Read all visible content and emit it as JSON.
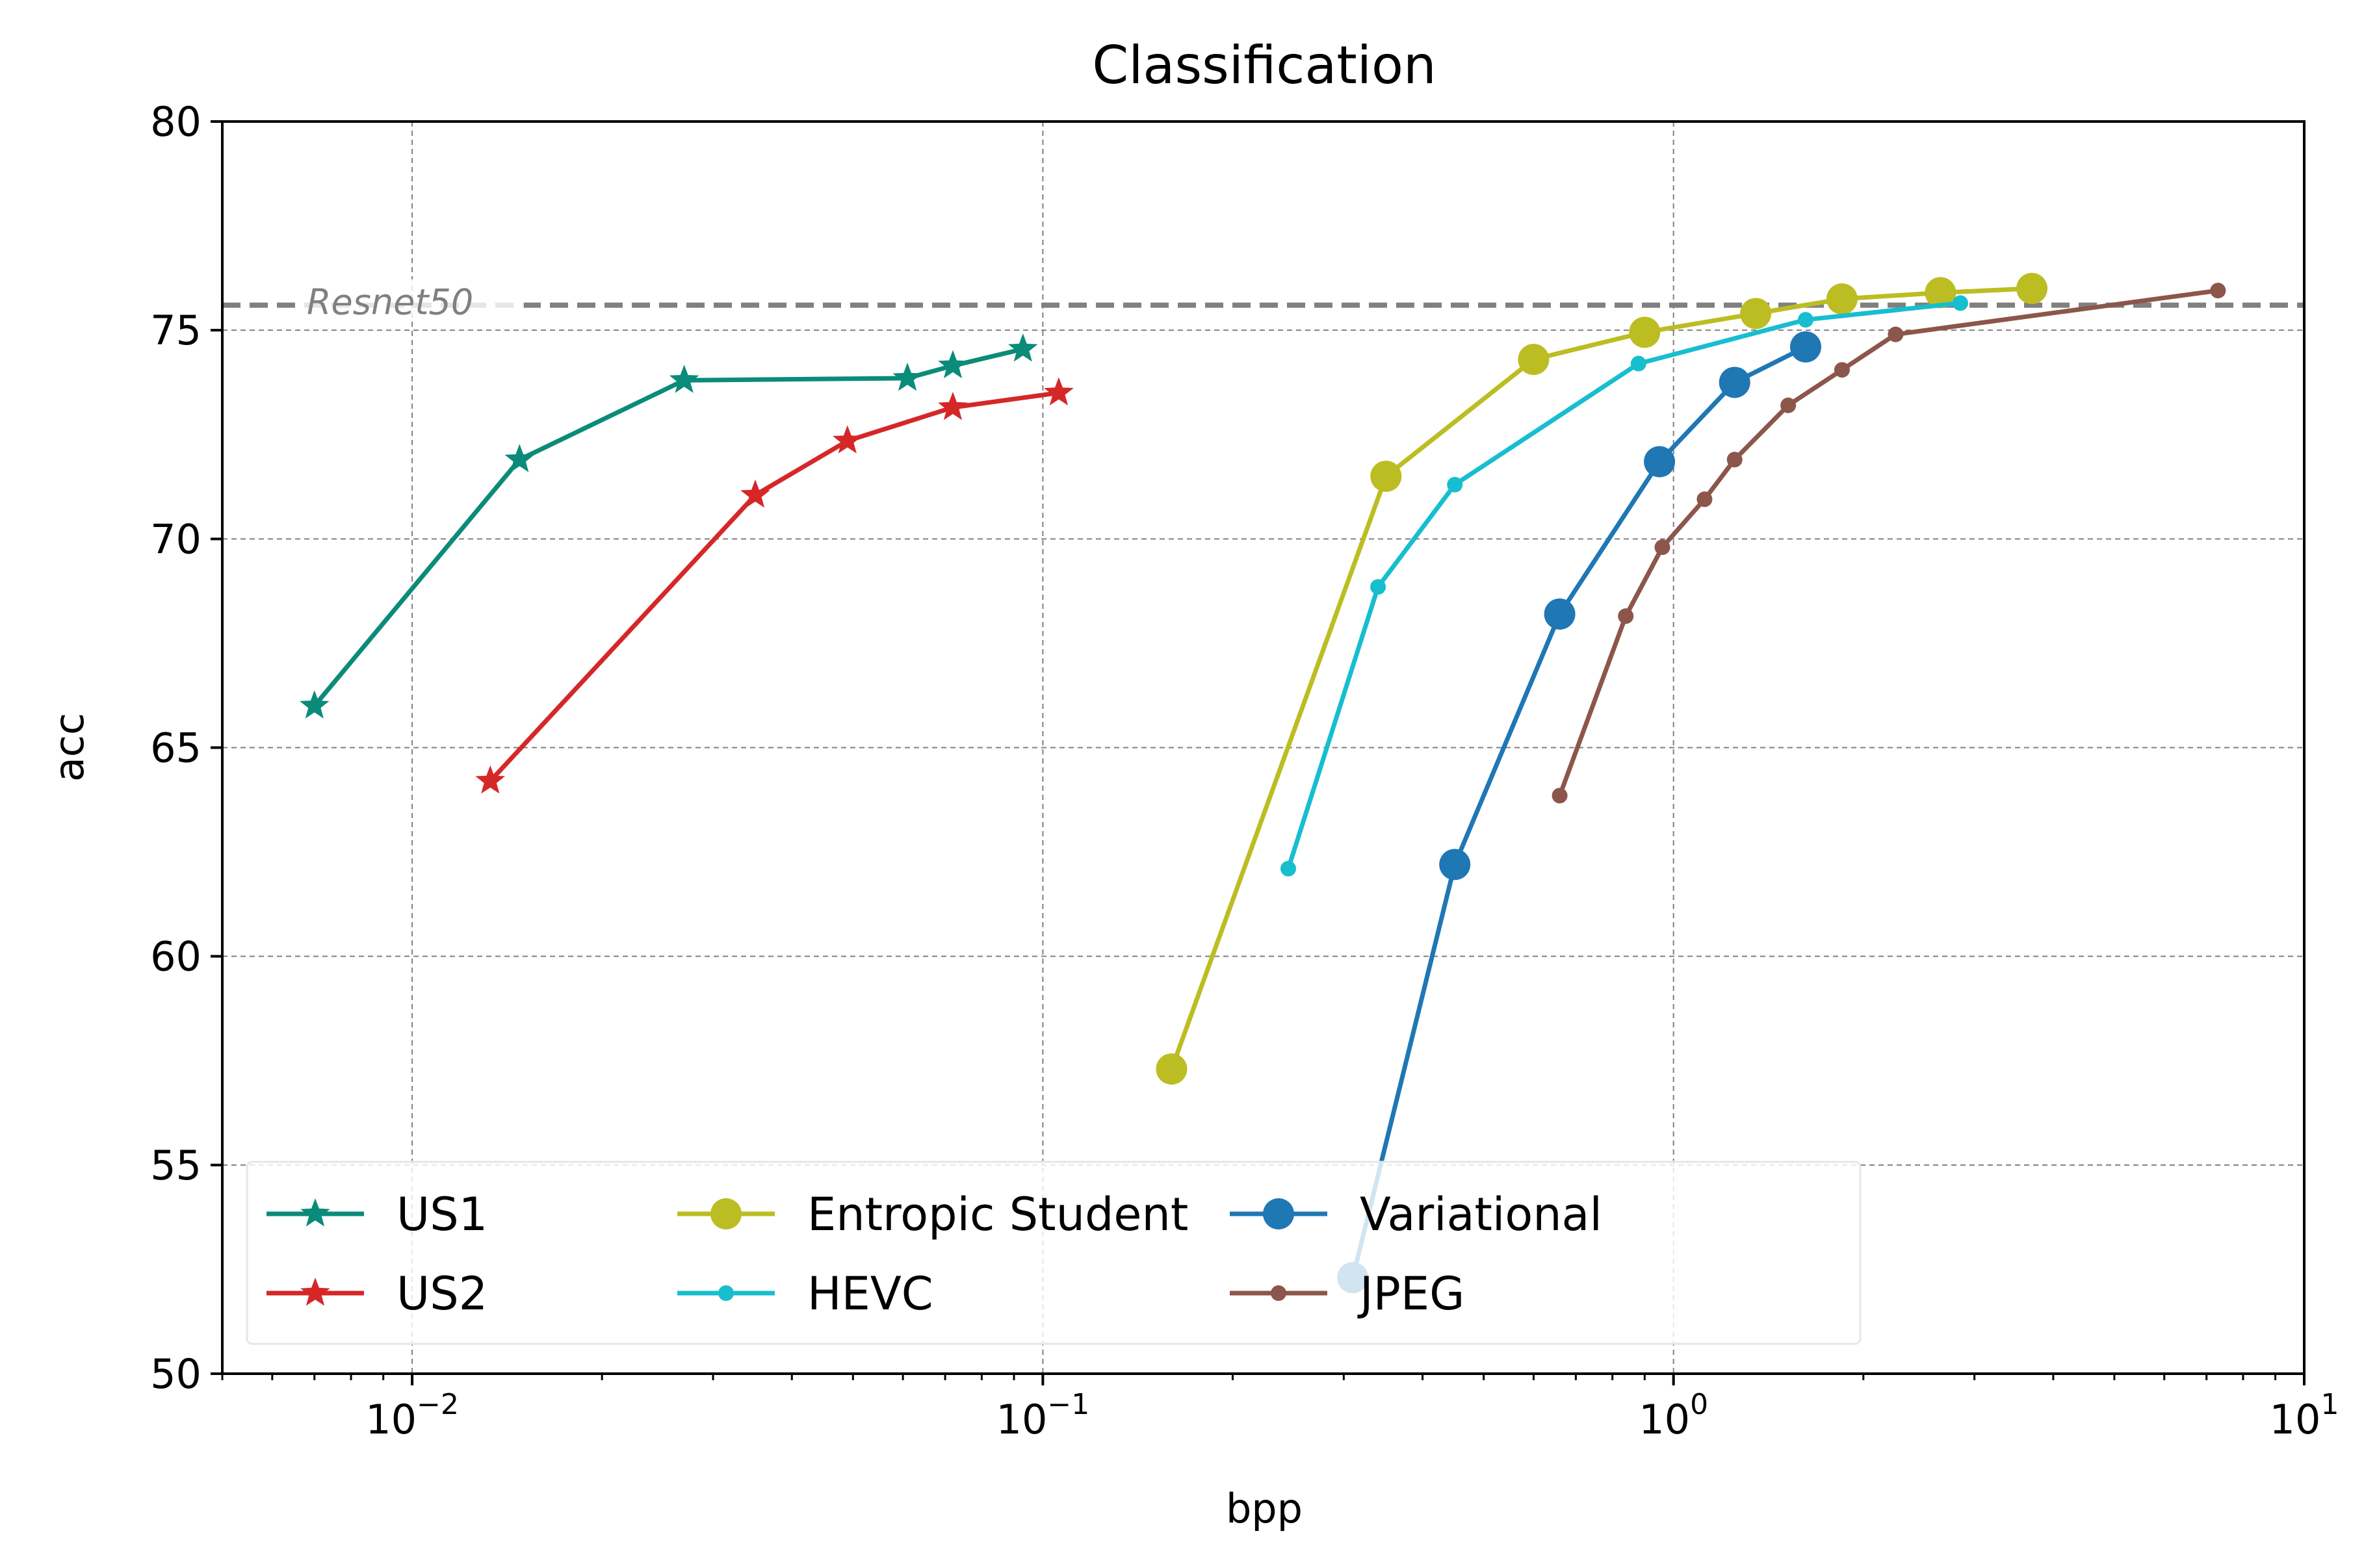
{
  "chart_data": {
    "type": "line",
    "title": "Classification",
    "xlabel": "bpp",
    "ylabel": "acc",
    "xscale": "log",
    "xlim": [
      0.005,
      10
    ],
    "ylim": [
      50,
      80
    ],
    "x_ticks": [
      {
        "value": 0.01,
        "base": "10",
        "exp": "−2"
      },
      {
        "value": 0.1,
        "base": "10",
        "exp": "−1"
      },
      {
        "value": 1,
        "base": "10",
        "exp": "0"
      },
      {
        "value": 10,
        "base": "10",
        "exp": "1"
      }
    ],
    "y_ticks": [
      50,
      55,
      60,
      65,
      70,
      75,
      80
    ],
    "grid": true,
    "legend_position": "lower-left",
    "reference_line": {
      "label": "Resnet50",
      "y": 75.6,
      "color": "#808080"
    },
    "series": [
      {
        "name": "US1",
        "color": "#0b8b7a",
        "marker": "star",
        "x": [
          0.007,
          0.0148,
          0.027,
          0.061,
          0.072,
          0.093
        ],
        "y": [
          66.0,
          71.9,
          73.8,
          73.85,
          74.15,
          74.55
        ]
      },
      {
        "name": "US2",
        "color": "#d62728",
        "marker": "star",
        "x": [
          0.0133,
          0.035,
          0.049,
          0.072,
          0.106
        ],
        "y": [
          64.2,
          71.05,
          72.35,
          73.15,
          73.5
        ]
      },
      {
        "name": "Entropic Student",
        "color": "#bcbd22",
        "marker": "big-circle",
        "x": [
          0.16,
          0.35,
          0.6,
          0.9,
          1.35,
          1.85,
          2.65,
          3.7
        ],
        "y": [
          57.3,
          71.5,
          74.3,
          74.95,
          75.4,
          75.75,
          75.9,
          76.0
        ]
      },
      {
        "name": "HEVC",
        "color": "#17becf",
        "marker": "small-circle",
        "x": [
          0.245,
          0.34,
          0.45,
          0.88,
          1.62,
          2.85
        ],
        "y": [
          62.1,
          68.85,
          71.3,
          74.2,
          75.25,
          75.65
        ]
      },
      {
        "name": "Variational",
        "color": "#1f77b4",
        "marker": "big-circle",
        "x": [
          0.31,
          0.45,
          0.66,
          0.95,
          1.25,
          1.62
        ],
        "y": [
          52.3,
          62.2,
          68.2,
          71.85,
          73.75,
          74.6
        ]
      },
      {
        "name": "JPEG",
        "color": "#8c564b",
        "marker": "small-circle",
        "x": [
          0.66,
          0.84,
          0.96,
          1.12,
          1.25,
          1.52,
          1.85,
          2.25,
          7.3
        ],
        "y": [
          63.85,
          68.15,
          69.8,
          70.95,
          71.9,
          73.2,
          74.05,
          74.9,
          75.95
        ]
      }
    ],
    "legend_order": [
      "US1",
      "US2",
      "Entropic Student",
      "HEVC",
      "Variational",
      "JPEG"
    ]
  }
}
